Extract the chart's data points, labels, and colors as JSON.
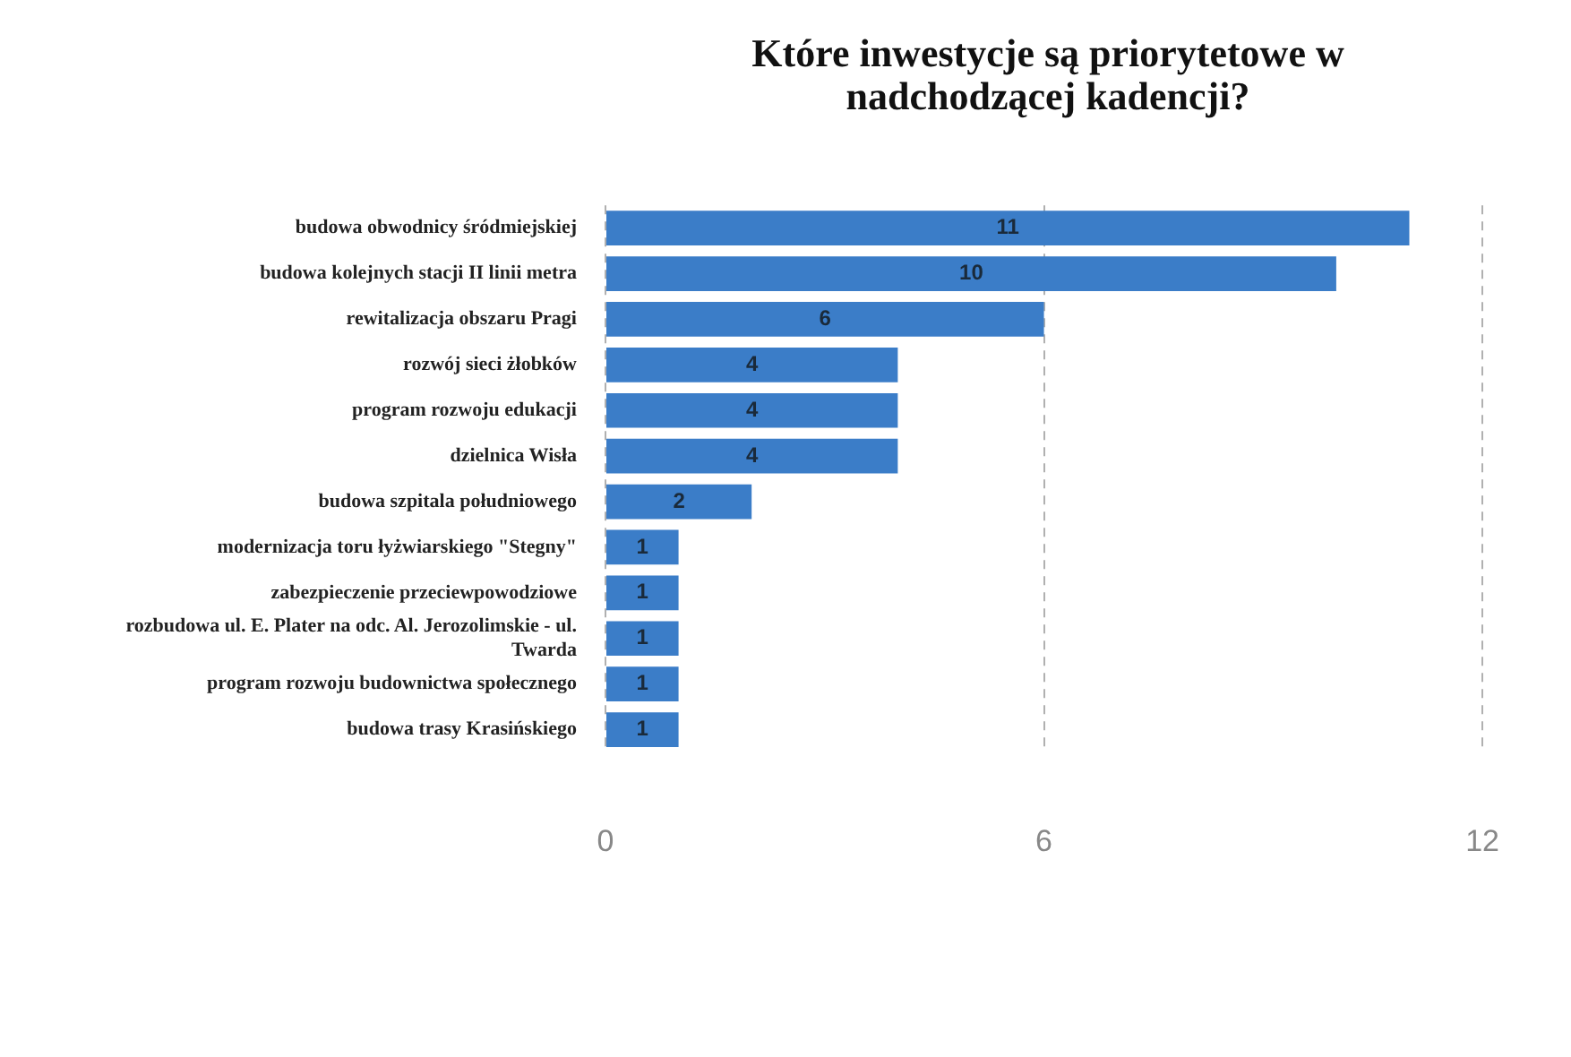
{
  "chart_data": {
    "type": "bar",
    "orientation": "horizontal",
    "title": "Które inwestycje są priorytetowe w nadchodzącej kadencji?",
    "categories": [
      "budowa obwodnicy śródmiejskiej",
      "budowa kolejnych stacji II linii metra",
      "rewitalizacja obszaru Pragi",
      "rozwój sieci żłobków",
      "program rozwoju edukacji",
      "dzielnica Wisła",
      "budowa szpitala południowego",
      "modernizacja toru łyżwiarskiego \"Stegny\"",
      "zabezpieczenie przeciewpowodziowe",
      "rozbudowa ul. E. Plater na odc. Al. Jerozolimskie - ul. Twarda",
      "program rozwoju budownictwa społecznego",
      "budowa trasy Krasińskiego"
    ],
    "values": [
      11,
      10,
      6,
      4,
      4,
      4,
      2,
      1,
      1,
      1,
      1,
      1
    ],
    "color": "#3b7dc8",
    "xlim": [
      0,
      12
    ],
    "xticks": [
      0,
      6,
      12
    ],
    "grid": "x",
    "data_labels": true,
    "legend": false
  }
}
